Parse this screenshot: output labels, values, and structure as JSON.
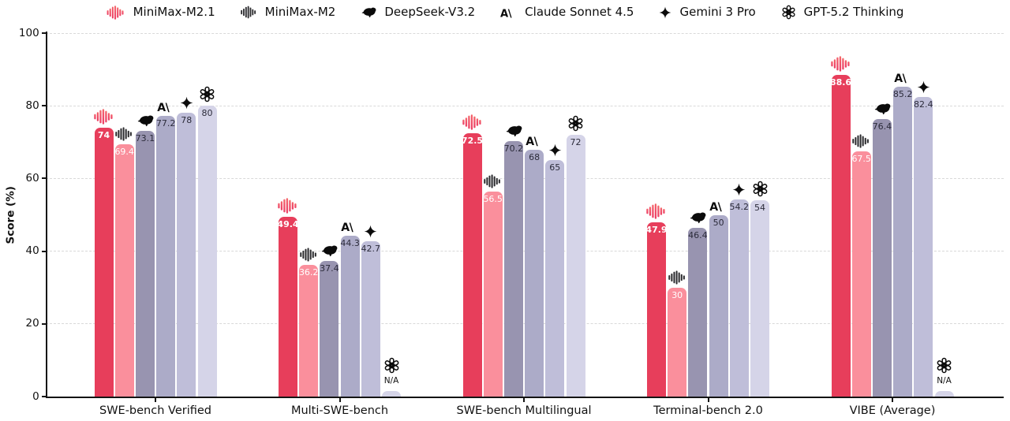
{
  "chart_data": {
    "type": "bar",
    "title": "",
    "ylabel": "Score (%)",
    "ylim": [
      0,
      100
    ],
    "yticks": [
      0,
      20,
      40,
      60,
      80,
      100
    ],
    "grid": "horizontal-dashed",
    "legend_position": "top-center",
    "na_label": "N/A",
    "categories": [
      "SWE-bench Verified",
      "Multi-SWE-bench",
      "SWE-bench Multilingual",
      "Terminal-bench 2.0",
      "VIBE (Average)"
    ],
    "series": [
      {
        "name": "MiniMax-M2.1",
        "icon": "minimax-pink-icon",
        "color": "#e73e5b",
        "value_color": "#ffffff",
        "value_bold": true,
        "values": [
          74,
          49.4,
          72.5,
          47.9,
          88.6
        ]
      },
      {
        "name": "MiniMax-M2",
        "icon": "minimax-dark-icon",
        "color": "#fa8f9c",
        "value_color": "#ffffff",
        "value_bold": false,
        "values": [
          69.4,
          36.2,
          56.5,
          30,
          67.5
        ]
      },
      {
        "name": "DeepSeek-V3.2",
        "icon": "deepseek-whale-icon",
        "color": "#9894b0",
        "value_color": "#2b2b3a",
        "value_bold": false,
        "values": [
          73.1,
          37.4,
          70.2,
          46.4,
          76.4
        ]
      },
      {
        "name": "Claude Sonnet 4.5",
        "icon": "claude-icon",
        "color": "#acabc8",
        "value_color": "#2b2b3a",
        "value_bold": false,
        "values": [
          77.2,
          44.3,
          68,
          50,
          85.2
        ]
      },
      {
        "name": "Gemini 3 Pro",
        "icon": "gemini-star-icon",
        "color": "#bfbed9",
        "value_color": "#2b2b3a",
        "value_bold": false,
        "values": [
          78,
          42.7,
          65,
          54.2,
          82.4
        ]
      },
      {
        "name": "GPT-5.2 Thinking",
        "icon": "openai-icon",
        "color": "#d5d4e8",
        "value_color": "#2b2b3a",
        "value_bold": false,
        "values": [
          80,
          null,
          72,
          54,
          null
        ]
      }
    ]
  }
}
